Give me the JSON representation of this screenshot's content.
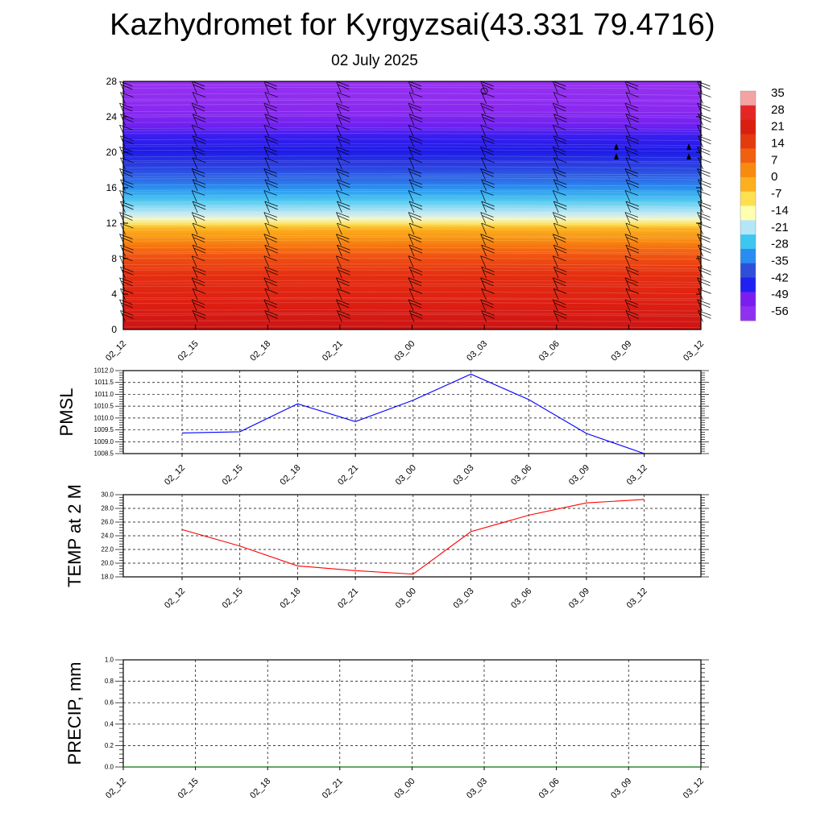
{
  "title": "Kazhydromet for Kyrgyzsai(43.331 79.4716)",
  "subtitle": "02 July 2025",
  "time_labels": [
    "02_12",
    "02_15",
    "02_18",
    "02_21",
    "03_00",
    "03_03",
    "03_06",
    "03_09",
    "03_12"
  ],
  "colorbar": {
    "labels": [
      "35",
      "28",
      "21",
      "14",
      "7",
      "0",
      "-7",
      "-14",
      "-21",
      "-28",
      "-35",
      "-42",
      "-49",
      "-56"
    ],
    "colors": [
      "#f3a3a3",
      "#e52626",
      "#d91f10",
      "#e33a10",
      "#f06010",
      "#f88a10",
      "#fbb020",
      "#fde050",
      "#ffffb0",
      "#b4e6f7",
      "#3cc6f0",
      "#2a8cf0",
      "#2f4fd8",
      "#2020f0",
      "#7a1ef0",
      "#9030f0"
    ]
  },
  "chart_data": [
    {
      "type": "heatmap",
      "name": "cross-section",
      "x_labels": [
        "02_12",
        "02_15",
        "02_18",
        "02_21",
        "03_00",
        "03_03",
        "03_06",
        "03_09",
        "03_12"
      ],
      "y_ticks": [
        0,
        4,
        8,
        12,
        16,
        20,
        24,
        28
      ],
      "ylim": [
        0,
        28
      ],
      "field": "temperature",
      "levels": [
        35,
        28,
        21,
        14,
        7,
        0,
        -7,
        -14,
        -21,
        -28,
        -35,
        -42,
        -49,
        -56
      ],
      "overlay": "wind barbs"
    },
    {
      "type": "line",
      "ylabel": "PMSL",
      "categories": [
        "02_12",
        "02_15",
        "02_18",
        "02_21",
        "03_00",
        "03_03",
        "03_06",
        "03_09",
        "03_12"
      ],
      "values": [
        1009.37,
        1009.42,
        1010.6,
        1009.85,
        1010.75,
        1011.85,
        1010.78,
        1009.35,
        1008.5
      ],
      "ylim": [
        1008.5,
        1012.0
      ],
      "y_ticks": [
        "1008.5",
        "1009.0",
        "1009.5",
        "1010.0",
        "1010.5",
        "1011.0",
        "1011.5",
        "1012.0"
      ],
      "color": "#0000ff",
      "grid": true
    },
    {
      "type": "line",
      "ylabel": "TEMP at 2 M",
      "categories": [
        "02_12",
        "02_15",
        "02_18",
        "02_21",
        "03_00",
        "03_03",
        "03_06",
        "03_09",
        "03_12"
      ],
      "values": [
        24.9,
        22.5,
        19.6,
        18.9,
        18.4,
        24.6,
        27.0,
        28.8,
        29.3
      ],
      "ylim": [
        18.0,
        30.0
      ],
      "y_ticks": [
        "18.0",
        "20.0",
        "22.0",
        "24.0",
        "26.0",
        "28.0",
        "30.0"
      ],
      "color": "#ff0000",
      "grid": true
    },
    {
      "type": "line",
      "ylabel": "PRECIP, mm",
      "categories": [
        "02_12",
        "02_15",
        "02_18",
        "02_21",
        "03_00",
        "03_03",
        "03_06",
        "03_09",
        "03_12"
      ],
      "values": [
        0,
        0,
        0,
        0,
        0,
        0,
        0,
        0,
        0
      ],
      "ylim": [
        0.0,
        1.0
      ],
      "y_ticks": [
        "0.0",
        "0.2",
        "0.4",
        "0.6",
        "0.8",
        "1.0"
      ],
      "color": "#008000",
      "grid": true
    }
  ]
}
